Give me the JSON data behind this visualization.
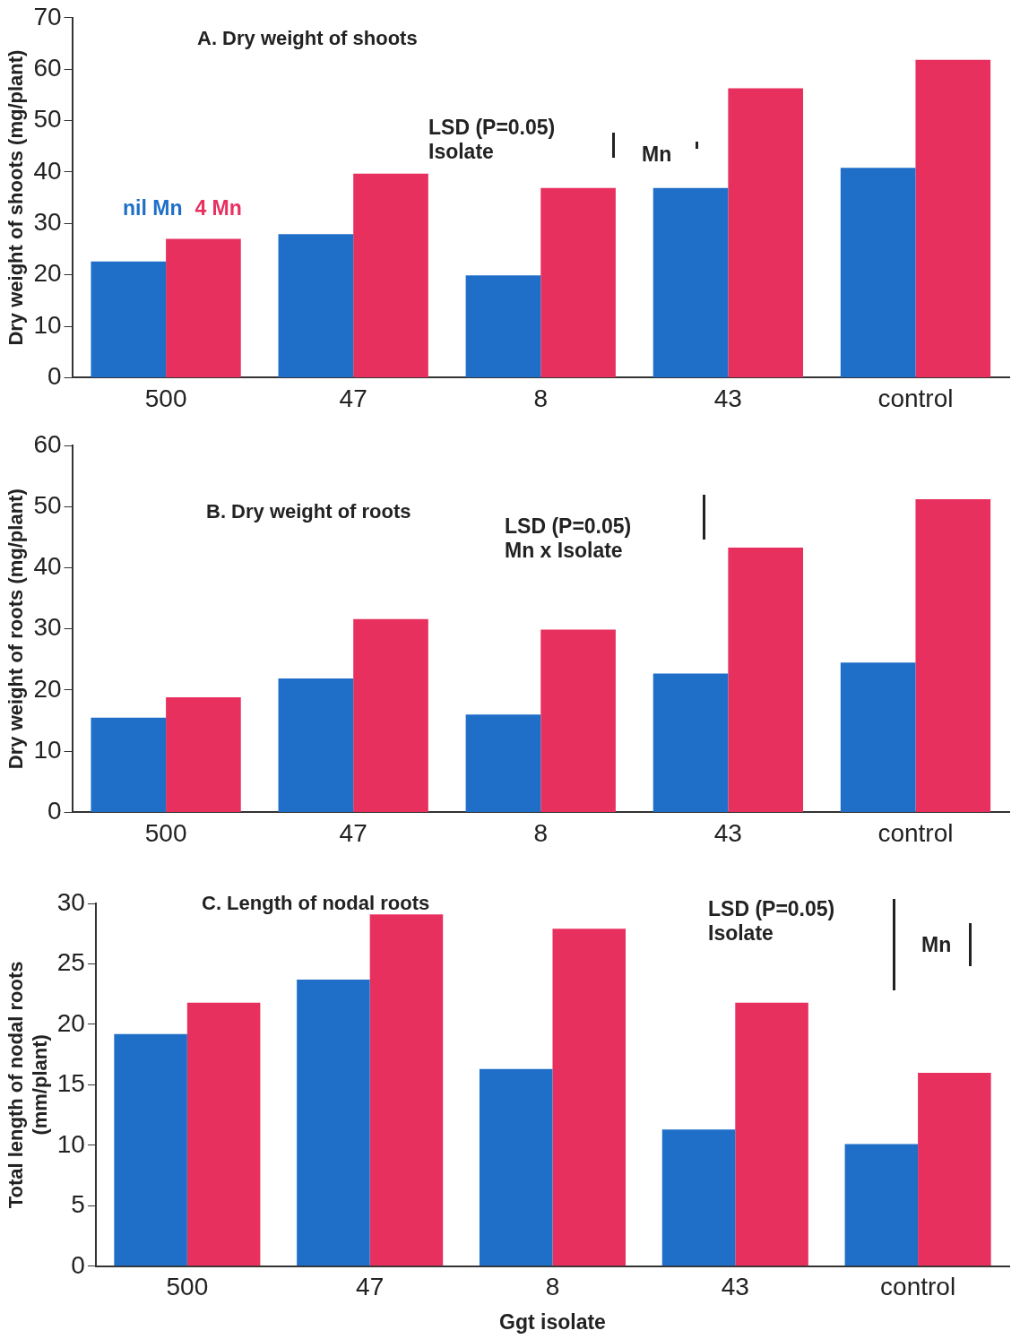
{
  "chart_data": [
    {
      "type": "bar",
      "title": "A. Dry weight of shoots",
      "ylabel": "Dry weight of shoots (mg/plant)",
      "categories": [
        "500",
        "47",
        "8",
        "43",
        "control"
      ],
      "series": [
        {
          "name": "nil Mn",
          "color": "#1f6fc8",
          "values": [
            22.6,
            27.9,
            19.9,
            36.9,
            40.8
          ]
        },
        {
          "name": "4 Mn",
          "color": "#e8305f",
          "values": [
            27.0,
            39.7,
            36.9,
            56.3,
            61.8
          ]
        }
      ],
      "ylim": [
        0,
        70
      ],
      "yticks": [
        0,
        10,
        20,
        30,
        40,
        50,
        60,
        70
      ],
      "grid": false,
      "legend": "left",
      "annotations": [
        "LSD (P=0.05)\nIsolate",
        "Mn"
      ]
    },
    {
      "type": "bar",
      "title": "B. Dry weight of roots",
      "ylabel": "Dry weight of roots (mg/plant)",
      "categories": [
        "500",
        "47",
        "8",
        "43",
        "control"
      ],
      "series": [
        {
          "color": "#1f6fc8",
          "values": [
            15.5,
            21.9,
            16.0,
            22.7,
            24.5
          ]
        },
        {
          "color": "#e8305f",
          "values": [
            18.8,
            31.6,
            29.9,
            43.3,
            51.2
          ]
        }
      ],
      "ylim": [
        0,
        60
      ],
      "yticks": [
        0,
        10,
        20,
        30,
        40,
        50,
        60
      ],
      "grid": false,
      "annotations": [
        "LSD (P=0.05)\nMn x Isolate"
      ]
    },
    {
      "type": "bar",
      "title": "C. Length of nodal roots",
      "xlabel": "Ggt isolate",
      "ylabel": "Total length of nodal roots\n(mm/plant)",
      "categories": [
        "500",
        "47",
        "8",
        "43",
        "control"
      ],
      "series": [
        {
          "color": "#1f6fc8",
          "values": [
            19.2,
            23.7,
            16.3,
            11.3,
            10.1
          ]
        },
        {
          "color": "#e8305f",
          "values": [
            21.8,
            29.1,
            27.9,
            21.8,
            16.0
          ]
        }
      ],
      "ylim": [
        0,
        30
      ],
      "yticks": [
        0,
        5,
        10,
        15,
        20,
        25,
        30
      ],
      "grid": false,
      "annotations": [
        "LSD (P=0.05)\nIsolate",
        "Mn"
      ]
    }
  ]
}
